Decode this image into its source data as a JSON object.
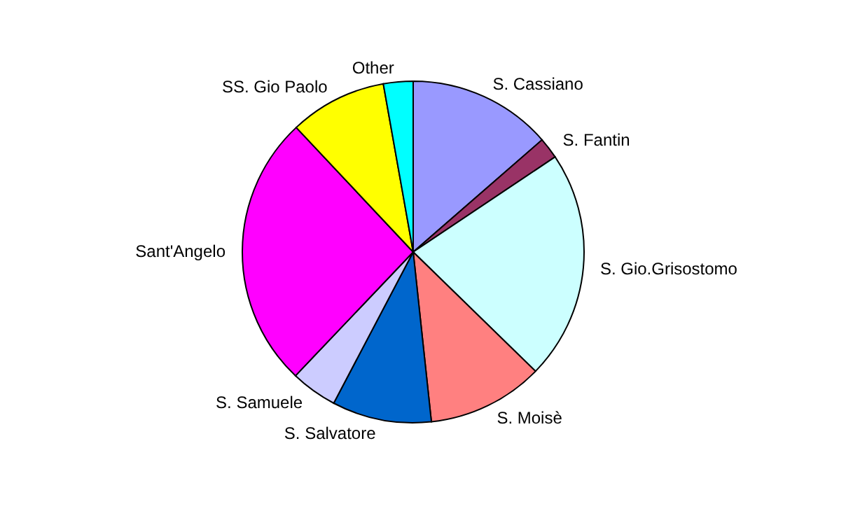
{
  "chart_data": {
    "type": "pie",
    "categories": [
      "S. Cassiano",
      "S. Fantin",
      "S. Gio.Grisostomo",
      "S. Moisè",
      "S. Salvatore",
      "S. Samuele",
      "Sant'Angelo",
      "SS. Gio Paolo",
      "Other"
    ],
    "values": [
      13.6,
      2,
      21.7,
      11,
      9.4,
      4.4,
      25.9,
      9.2,
      2.8
    ],
    "colors": [
      "#9999ff",
      "#993366",
      "#ccffff",
      "#ff8080",
      "#0066cc",
      "#ccccff",
      "#ff00ff",
      "#ffff00",
      "#00ffff"
    ],
    "legend": false
  }
}
